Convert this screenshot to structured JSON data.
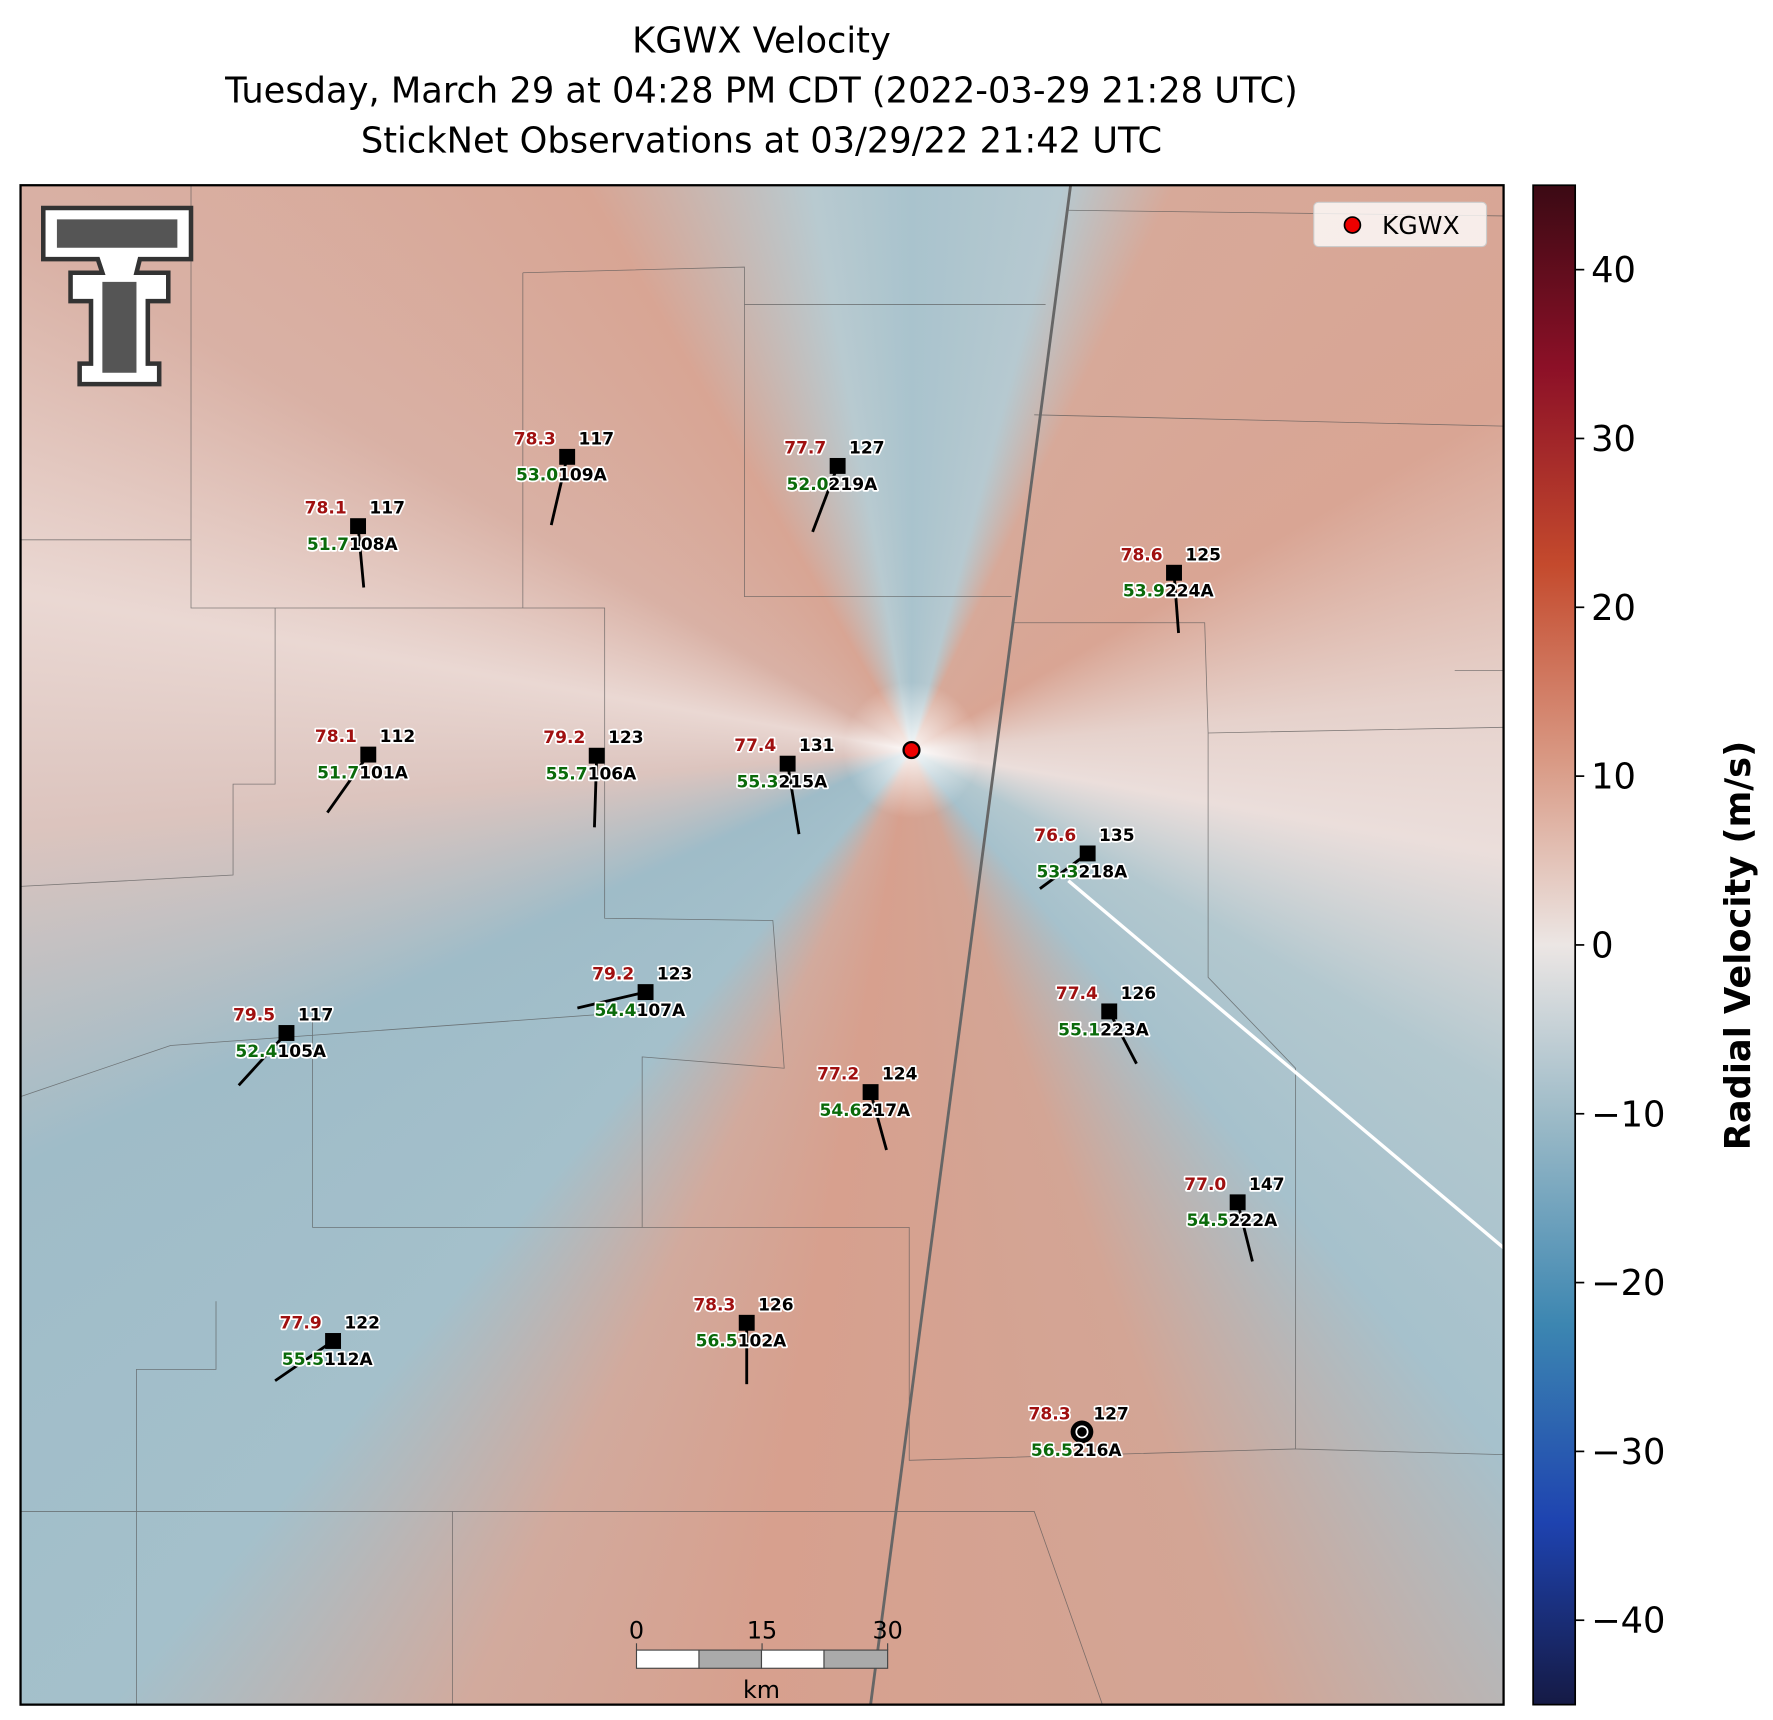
{
  "title": {
    "lines": [
      "KGWX Velocity",
      "Tuesday, March 29 at 04:28 PM CDT (2022-03-29 21:28 UTC)",
      "StickNet Observations at 03/29/22 21:42 UTC"
    ]
  },
  "legend": {
    "label": "KGWX"
  },
  "stations": [
    {
      "id": "108A",
      "temperature": "78.1",
      "dewpoint": "51.7",
      "value": "117"
    },
    {
      "id": "109A",
      "temperature": "78.3",
      "dewpoint": "53.0",
      "value": "117"
    },
    {
      "id": "219A",
      "temperature": "77.7",
      "dewpoint": "52.0",
      "value": "127"
    },
    {
      "id": "224A",
      "temperature": "78.6",
      "dewpoint": "53.9",
      "value": "125"
    },
    {
      "id": "101A",
      "temperature": "78.1",
      "dewpoint": "51.7",
      "value": "112"
    },
    {
      "id": "106A",
      "temperature": "79.2",
      "dewpoint": "55.7",
      "value": "123"
    },
    {
      "id": "215A",
      "temperature": "77.4",
      "dewpoint": "55.3",
      "value": "131"
    },
    {
      "id": "218A",
      "temperature": "76.6",
      "dewpoint": "53.3",
      "value": "135"
    },
    {
      "id": "107A",
      "temperature": "79.2",
      "dewpoint": "54.4",
      "value": "123"
    },
    {
      "id": "105A",
      "temperature": "79.5",
      "dewpoint": "52.4",
      "value": "117"
    },
    {
      "id": "223A",
      "temperature": "77.4",
      "dewpoint": "55.1",
      "value": "126"
    },
    {
      "id": "217A",
      "temperature": "77.2",
      "dewpoint": "54.6",
      "value": "124"
    },
    {
      "id": "222A",
      "temperature": "77.0",
      "dewpoint": "54.5",
      "value": "147"
    },
    {
      "id": "112A",
      "temperature": "77.9",
      "dewpoint": "55.5",
      "value": "122"
    },
    {
      "id": "102A",
      "temperature": "78.3",
      "dewpoint": "56.5",
      "value": "126"
    },
    {
      "id": "216A",
      "temperature": "78.3",
      "dewpoint": "56.5",
      "value": "127"
    }
  ],
  "colorbar": {
    "label": "Radial Velocity (m/s)",
    "range": [
      -45,
      45
    ],
    "ticks": [
      {
        "value": -40,
        "label": "−40"
      },
      {
        "value": -30,
        "label": "−30"
      },
      {
        "value": -20,
        "label": "−20"
      },
      {
        "value": -10,
        "label": "−10"
      },
      0,
      10,
      20,
      30,
      40
    ]
  },
  "scale_bar": {
    "ticks": [
      0,
      15,
      30
    ],
    "unit": "km"
  }
}
